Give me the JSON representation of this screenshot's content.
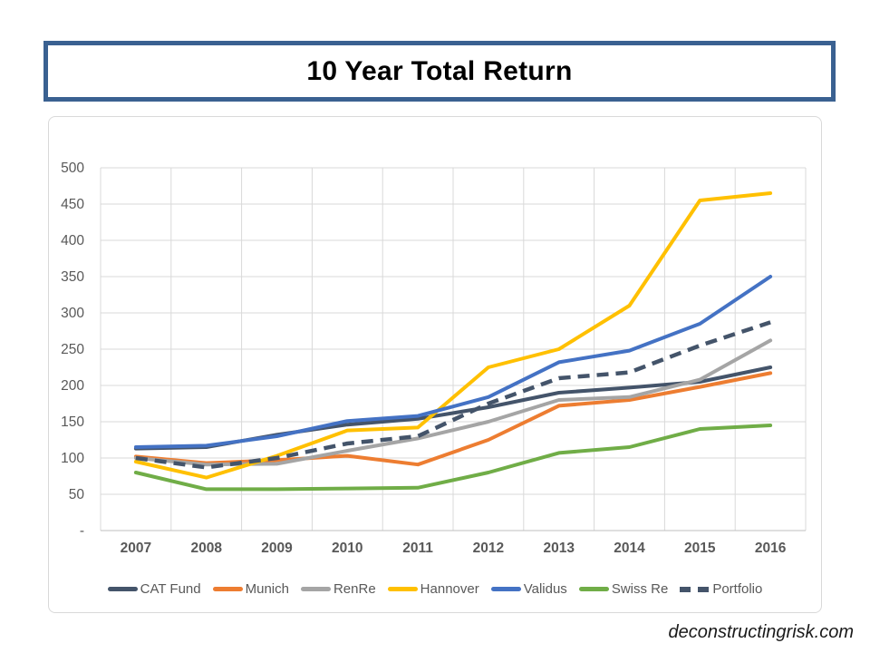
{
  "page": {
    "title": "10 Year Total Return",
    "watermark": "deconstructingrisk.com"
  },
  "colors": {
    "banner_border": "#3A6191",
    "panel_border": "#D9D9D9",
    "gridline": "#D9D9D9",
    "axis_line": "#BFBFBF",
    "tick_text": "#595959"
  },
  "chart_data": {
    "type": "line",
    "title": "10 Year Total Return",
    "categories": [
      "2007",
      "2008",
      "2009",
      "2010",
      "2011",
      "2012",
      "2013",
      "2014",
      "2015",
      "2016"
    ],
    "series": [
      {
        "name": "CAT Fund",
        "color": "#44546A",
        "style": "solid",
        "values": [
          113,
          115,
          132,
          146,
          154,
          170,
          190,
          197,
          205,
          225
        ]
      },
      {
        "name": "Munich",
        "color": "#ED7D31",
        "style": "solid",
        "values": [
          102,
          93,
          97,
          103,
          91,
          125,
          172,
          180,
          198,
          217
        ]
      },
      {
        "name": "RenRe",
        "color": "#A5A5A5",
        "style": "solid",
        "values": [
          100,
          91,
          92,
          110,
          127,
          150,
          180,
          184,
          208,
          262
        ]
      },
      {
        "name": "Hannover",
        "color": "#FFC000",
        "style": "solid",
        "values": [
          95,
          73,
          103,
          138,
          142,
          225,
          250,
          310,
          455,
          465
        ]
      },
      {
        "name": "Validus",
        "color": "#4472C4",
        "style": "solid",
        "values": [
          115,
          117,
          130,
          151,
          158,
          184,
          232,
          248,
          285,
          350
        ]
      },
      {
        "name": "Swiss Re",
        "color": "#70AD47",
        "style": "solid",
        "values": [
          80,
          57,
          57,
          58,
          59,
          80,
          107,
          115,
          140,
          145
        ]
      },
      {
        "name": "Portfolio",
        "color": "#44546A",
        "style": "dashed",
        "values": [
          100,
          87,
          100,
          120,
          130,
          175,
          210,
          218,
          255,
          287
        ]
      }
    ],
    "ylim": [
      0,
      500
    ],
    "y_tick_step": 50,
    "y_tick_labels": [
      "-",
      "50",
      "100",
      "150",
      "200",
      "250",
      "300",
      "350",
      "400",
      "450",
      "500"
    ],
    "grid": true,
    "x_axis_placement": "between-categories",
    "legend_position": "bottom"
  }
}
